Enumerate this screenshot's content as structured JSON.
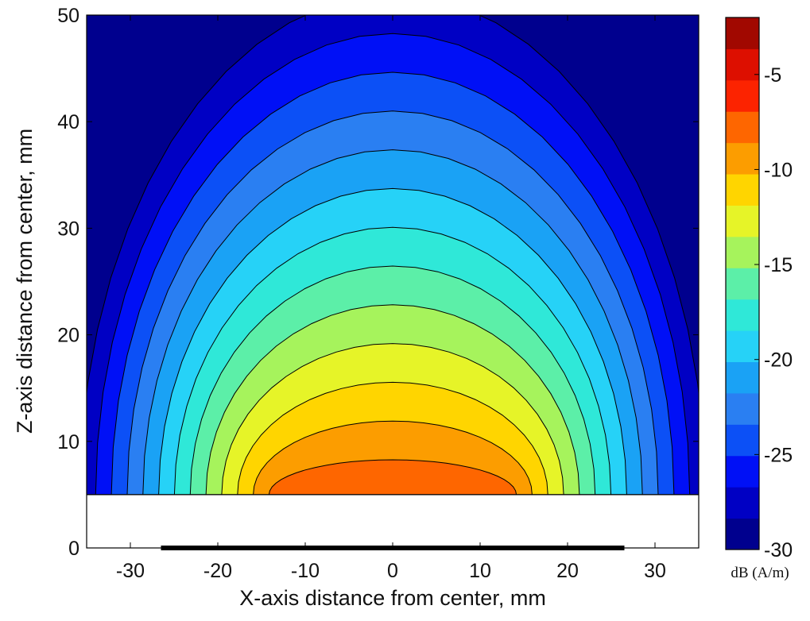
{
  "chart_data": {
    "type": "contour",
    "xlabel": "X-axis distance from center, mm",
    "ylabel": "Z-axis distance from center, mm",
    "xlim": [
      -35,
      35
    ],
    "ylim": [
      0,
      50
    ],
    "x_ticks": [
      -30,
      -20,
      -10,
      0,
      10,
      20,
      30
    ],
    "y_ticks": [
      0,
      10,
      20,
      30,
      40,
      50
    ],
    "x_tick_labels": [
      "-30",
      "-20",
      "-10",
      "0",
      "10",
      "20",
      "30"
    ],
    "y_tick_labels": [
      "0",
      "10",
      "20",
      "30",
      "40",
      "50"
    ],
    "field_region_z_min": 5,
    "conductor_extent_x": [
      -26.5,
      26.5
    ],
    "conductor_z": 0,
    "colorbar": {
      "label": "dB (A/m)",
      "range": [
        -30,
        -2
      ],
      "ticks": [
        -30,
        -25,
        -20,
        -15,
        -10,
        -5
      ],
      "tick_labels": [
        "-30",
        "-25",
        "-20",
        "-15",
        "-10",
        "-5"
      ],
      "levels": [
        -30,
        -28,
        -26,
        -24,
        -22,
        -20,
        -18,
        -16,
        -14,
        -12,
        -10,
        -8,
        -6,
        -4,
        -2
      ],
      "colors": [
        "#00008e",
        "#0000c4",
        "#0010f6",
        "#0c50f6",
        "#2a7ff2",
        "#1aa2f5",
        "#26d2f7",
        "#2fe8d8",
        "#5cefa8",
        "#a6f35c",
        "#e6f428",
        "#ffd500",
        "#fc9d00",
        "#fe6600",
        "#fc2300",
        "#dd0f00",
        "#a10800"
      ]
    },
    "contour_profiles": {
      "x": [
        -35,
        -30,
        -25,
        -20,
        -15,
        -10,
        -5,
        0,
        5,
        10,
        15,
        20,
        25,
        30,
        35
      ],
      "z": [
        5,
        10,
        15,
        20,
        25,
        30,
        35,
        40,
        45,
        50
      ],
      "field_top_db": -4.2,
      "field_decay_db_per_mm": 0.55,
      "half_width_mm": 26.5
    }
  }
}
